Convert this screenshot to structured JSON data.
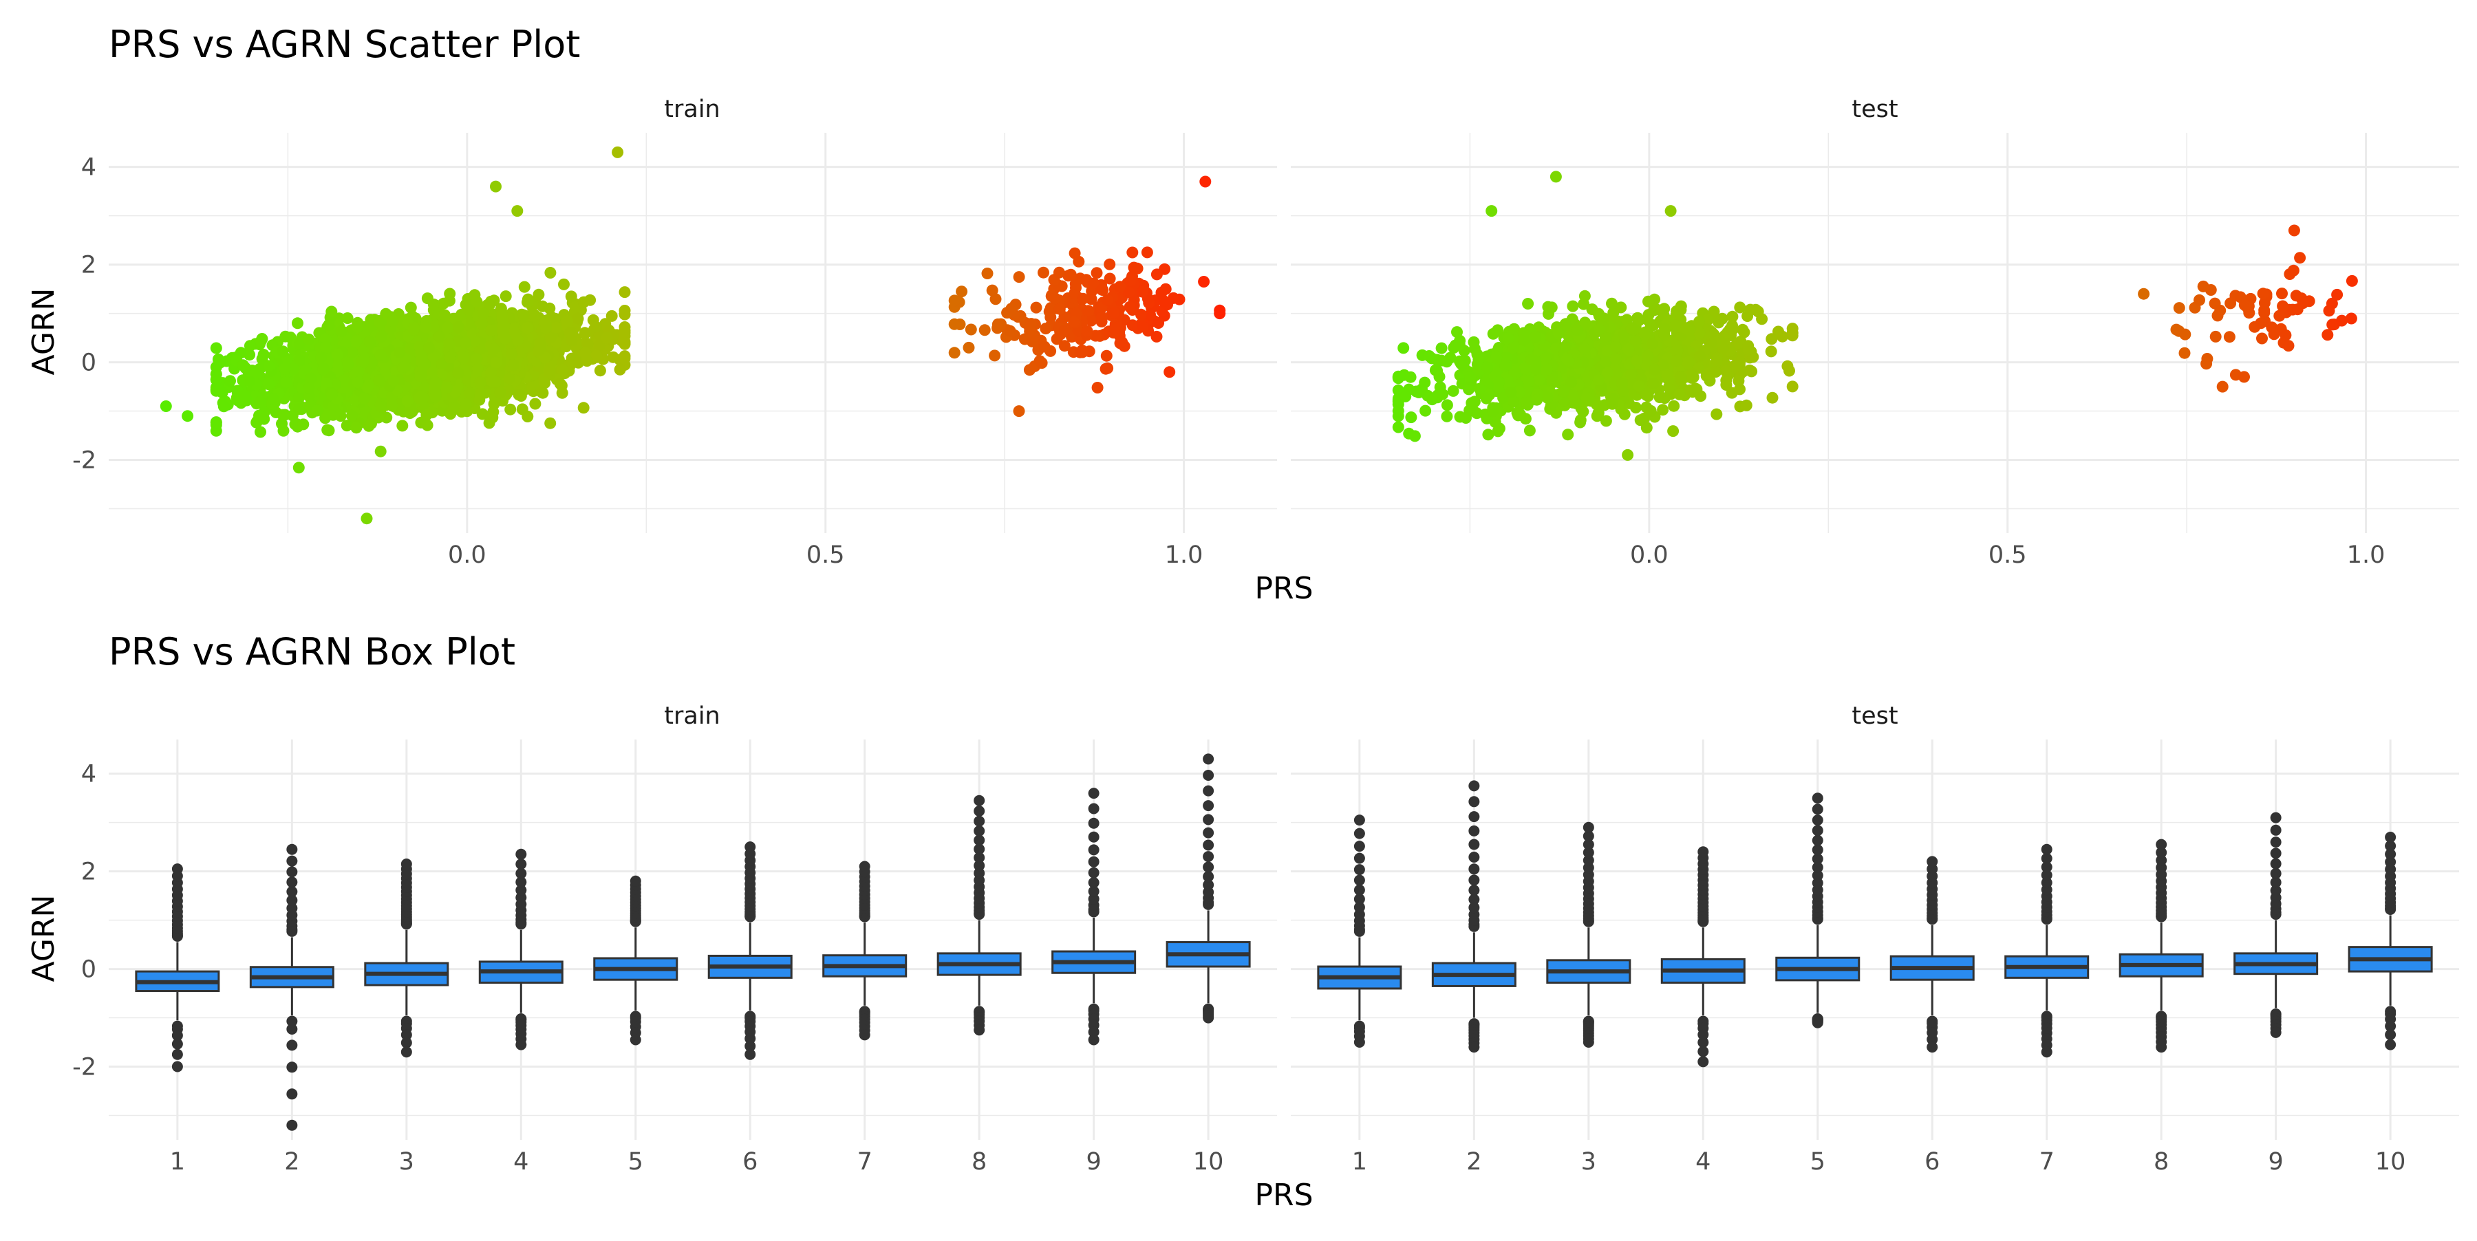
{
  "chart_data": [
    {
      "type": "scatter",
      "title": "PRS vs AGRN Scatter Plot",
      "xlabel": "PRS",
      "ylabel": "AGRN",
      "xlim": [
        -0.5,
        1.13
      ],
      "ylim": [
        -3.5,
        4.7
      ],
      "x_ticks": [
        "0.0",
        "0.5",
        "1.0"
      ],
      "x_tick_values": [
        0.0,
        0.5,
        1.0
      ],
      "y_ticks": [
        "4",
        "2",
        "0",
        "-2"
      ],
      "y_tick_values": [
        4,
        2,
        0,
        -2
      ],
      "grid": true,
      "color_scale": [
        "#55ee00",
        "#b0b800",
        "#ff2200"
      ],
      "facets": [
        {
          "label": "train",
          "clusters": [
            {
              "name": "",
              "x_range": [
                -0.35,
                0.22
              ],
              "y_center": 0.0,
              "n": 3000
            },
            {
              "name": "",
              "x_range": [
                0.68,
                1.05
              ],
              "y_center": 1.0,
              "n": 220
            }
          ],
          "highlight_points": [
            [
              -0.42,
              -0.9
            ],
            [
              -0.39,
              -1.1
            ],
            [
              -0.14,
              -3.2
            ],
            [
              0.21,
              4.3
            ],
            [
              1.03,
              3.7
            ],
            [
              0.77,
              -1.0
            ],
            [
              0.98,
              -0.2
            ],
            [
              1.05,
              1.0
            ],
            [
              0.69,
              1.45
            ],
            [
              0.07,
              3.1
            ],
            [
              0.04,
              3.6
            ]
          ]
        },
        {
          "label": "test",
          "clusters": [
            {
              "name": "",
              "x_range": [
                -0.35,
                0.2
              ],
              "y_center": 0.0,
              "n": 1300
            },
            {
              "name": "",
              "x_range": [
                0.68,
                1.01
              ],
              "y_center": 1.0,
              "n": 65
            }
          ],
          "highlight_points": [
            [
              -0.34,
              -0.7
            ],
            [
              -0.13,
              3.8
            ],
            [
              -0.22,
              3.1
            ],
            [
              0.03,
              3.1
            ],
            [
              -0.03,
              -1.9
            ],
            [
              0.9,
              2.7
            ],
            [
              0.69,
              1.4
            ],
            [
              0.8,
              -0.5
            ],
            [
              0.83,
              -0.3
            ]
          ]
        }
      ]
    },
    {
      "type": "box",
      "title": "PRS vs AGRN Box Plot",
      "xlabel": "PRS",
      "ylabel": "AGRN",
      "categories": [
        "1",
        "2",
        "3",
        "4",
        "5",
        "6",
        "7",
        "8",
        "9",
        "10"
      ],
      "ylim": [
        -3.5,
        4.7
      ],
      "y_ticks": [
        "4",
        "2",
        "0",
        "-2"
      ],
      "y_tick_values": [
        4,
        2,
        0,
        -2
      ],
      "grid": true,
      "box_color": "#2a8bef",
      "facets": [
        {
          "label": "train",
          "boxes": [
            {
              "q1": -0.45,
              "median": -0.27,
              "q3": -0.05,
              "whisker_low": -1.05,
              "whisker_high": 0.55,
              "outlier_max": 2.05,
              "outlier_min": -2.0
            },
            {
              "q1": -0.37,
              "median": -0.17,
              "q3": 0.04,
              "whisker_low": -0.95,
              "whisker_high": 0.65,
              "outlier_max": 2.45,
              "outlier_min": -3.2
            },
            {
              "q1": -0.33,
              "median": -0.1,
              "q3": 0.12,
              "whisker_low": -0.95,
              "whisker_high": 0.8,
              "outlier_max": 2.15,
              "outlier_min": -1.7
            },
            {
              "q1": -0.28,
              "median": -0.05,
              "q3": 0.15,
              "whisker_low": -0.9,
              "whisker_high": 0.8,
              "outlier_max": 2.35,
              "outlier_min": -1.55
            },
            {
              "q1": -0.22,
              "median": 0.0,
              "q3": 0.22,
              "whisker_low": -0.85,
              "whisker_high": 0.85,
              "outlier_max": 1.8,
              "outlier_min": -1.45
            },
            {
              "q1": -0.18,
              "median": 0.05,
              "q3": 0.27,
              "whisker_low": -0.85,
              "whisker_high": 0.95,
              "outlier_max": 2.5,
              "outlier_min": -1.75
            },
            {
              "q1": -0.15,
              "median": 0.06,
              "q3": 0.28,
              "whisker_low": -0.75,
              "whisker_high": 0.95,
              "outlier_max": 2.1,
              "outlier_min": -1.35
            },
            {
              "q1": -0.12,
              "median": 0.1,
              "q3": 0.32,
              "whisker_low": -0.75,
              "whisker_high": 1.0,
              "outlier_max": 3.45,
              "outlier_min": -1.25
            },
            {
              "q1": -0.08,
              "median": 0.14,
              "q3": 0.36,
              "whisker_low": -0.7,
              "whisker_high": 1.05,
              "outlier_max": 3.6,
              "outlier_min": -1.45
            },
            {
              "q1": 0.05,
              "median": 0.3,
              "q3": 0.55,
              "whisker_low": -0.7,
              "whisker_high": 1.2,
              "outlier_max": 4.3,
              "outlier_min": -1.0
            }
          ]
        },
        {
          "label": "test",
          "boxes": [
            {
              "q1": -0.4,
              "median": -0.17,
              "q3": 0.05,
              "whisker_low": -1.05,
              "whisker_high": 0.65,
              "outlier_max": 3.05,
              "outlier_min": -1.5
            },
            {
              "q1": -0.35,
              "median": -0.12,
              "q3": 0.12,
              "whisker_low": -1.0,
              "whisker_high": 0.75,
              "outlier_max": 3.75,
              "outlier_min": -1.6
            },
            {
              "q1": -0.28,
              "median": -0.05,
              "q3": 0.18,
              "whisker_low": -0.95,
              "whisker_high": 0.85,
              "outlier_max": 2.9,
              "outlier_min": -1.5
            },
            {
              "q1": -0.28,
              "median": -0.03,
              "q3": 0.2,
              "whisker_low": -0.95,
              "whisker_high": 0.85,
              "outlier_max": 2.4,
              "outlier_min": -1.9
            },
            {
              "q1": -0.23,
              "median": 0.0,
              "q3": 0.23,
              "whisker_low": -0.9,
              "whisker_high": 0.9,
              "outlier_max": 3.5,
              "outlier_min": -1.1
            },
            {
              "q1": -0.22,
              "median": 0.02,
              "q3": 0.26,
              "whisker_low": -0.95,
              "whisker_high": 0.9,
              "outlier_max": 2.2,
              "outlier_min": -1.6
            },
            {
              "q1": -0.18,
              "median": 0.04,
              "q3": 0.26,
              "whisker_low": -0.85,
              "whisker_high": 0.9,
              "outlier_max": 2.45,
              "outlier_min": -1.7
            },
            {
              "q1": -0.15,
              "median": 0.08,
              "q3": 0.3,
              "whisker_low": -0.85,
              "whisker_high": 0.95,
              "outlier_max": 2.55,
              "outlier_min": -1.6
            },
            {
              "q1": -0.1,
              "median": 0.1,
              "q3": 0.32,
              "whisker_low": -0.8,
              "whisker_high": 1.0,
              "outlier_max": 3.1,
              "outlier_min": -1.3
            },
            {
              "q1": -0.05,
              "median": 0.2,
              "q3": 0.45,
              "whisker_low": -0.75,
              "whisker_high": 1.1,
              "outlier_max": 2.7,
              "outlier_min": -1.55
            }
          ]
        }
      ]
    }
  ]
}
